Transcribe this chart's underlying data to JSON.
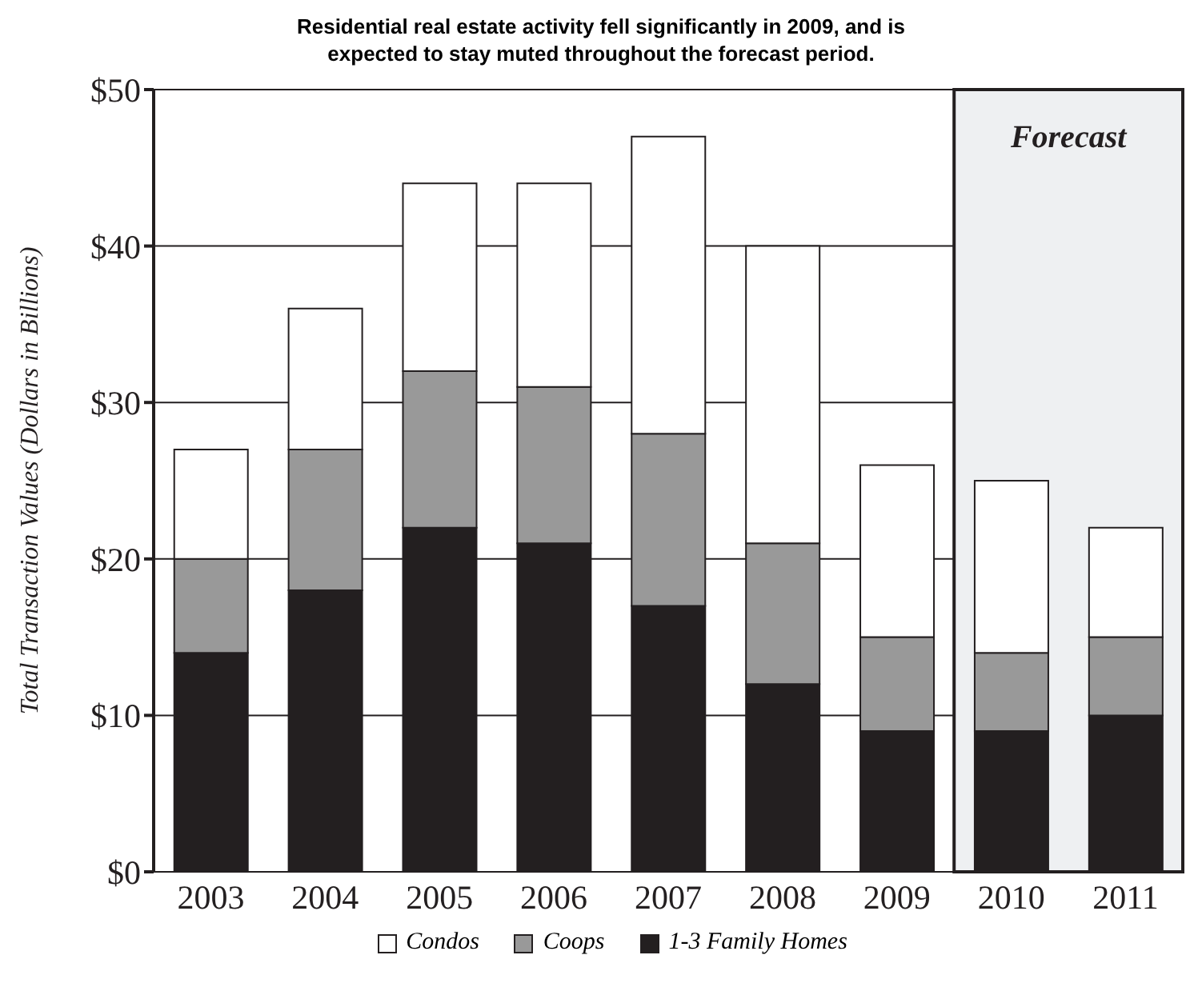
{
  "chart_data": {
    "type": "bar",
    "title": "Residential real estate activity fell significantly in 2009, and is expected to stay muted throughout the forecast period.",
    "ylabel": "Total Transaction Values (Dollars in Billions)",
    "categories": [
      "2003",
      "2004",
      "2005",
      "2006",
      "2007",
      "2008",
      "2009",
      "2010",
      "2011"
    ],
    "stacked": true,
    "series": [
      {
        "name": "1-3 Family Homes",
        "color": "#231f20",
        "values": [
          14,
          18,
          22,
          21,
          17,
          12,
          9,
          9,
          10
        ]
      },
      {
        "name": "Coops",
        "color": "#999999",
        "values": [
          6,
          9,
          10,
          10,
          11,
          9,
          6,
          5,
          5
        ]
      },
      {
        "name": "Condos",
        "color": "#ffffff",
        "values": [
          7,
          9,
          12,
          13,
          19,
          19,
          11,
          11,
          7
        ]
      }
    ],
    "ylim": [
      0,
      50
    ],
    "yticks": [
      {
        "value": 0,
        "label": "$0"
      },
      {
        "value": 10,
        "label": "$10"
      },
      {
        "value": 20,
        "label": "$20"
      },
      {
        "value": 30,
        "label": "$30"
      },
      {
        "value": 40,
        "label": "$40"
      },
      {
        "value": 50,
        "label": "$50"
      }
    ],
    "grid": "y",
    "legend": "bottom",
    "bands": [
      {
        "axis": "x",
        "from": "2010",
        "to": "2011",
        "label": "Forecast",
        "color": "#eef0f2"
      }
    ]
  }
}
